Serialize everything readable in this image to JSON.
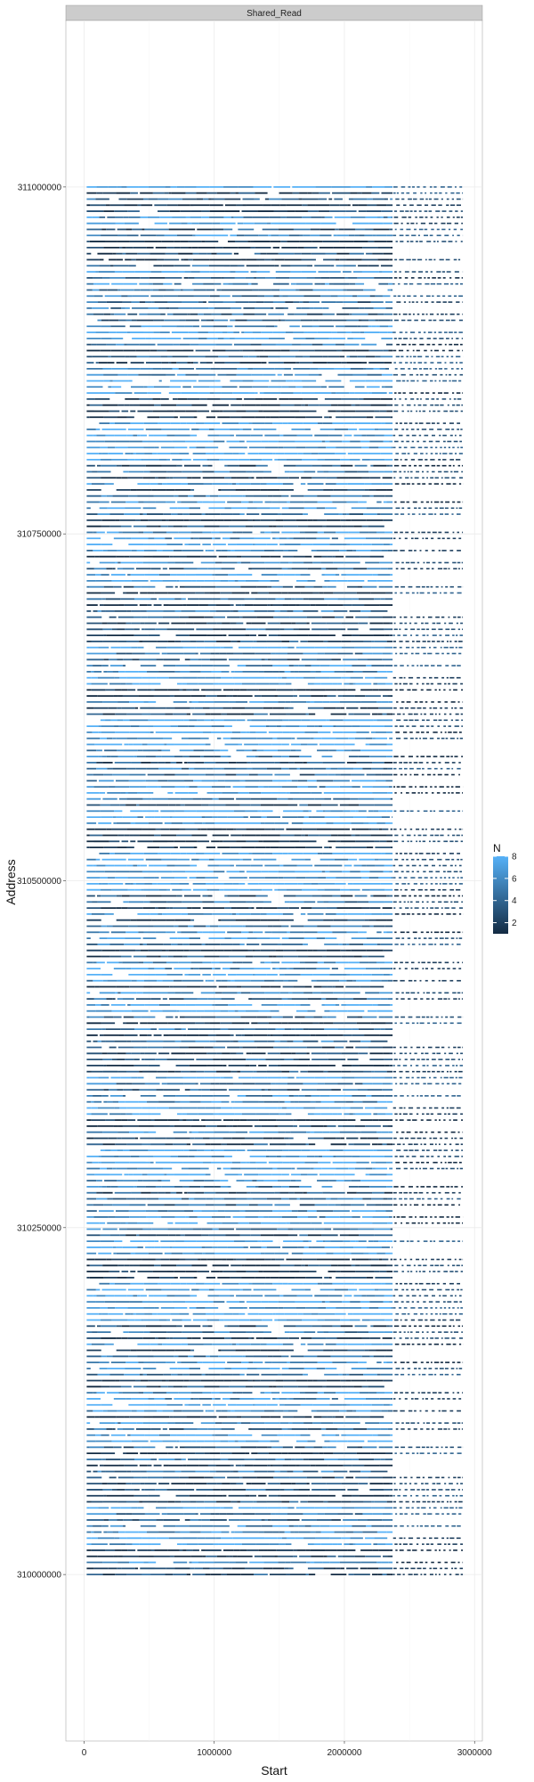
{
  "chart_data": {
    "type": "scatter",
    "panel_strip": "Shared_Read",
    "xlabel": "Start",
    "ylabel": "Address",
    "xlim": [
      -140000,
      3060000
    ],
    "ylim": [
      309880000,
      311120000
    ],
    "x_ticks": [
      0,
      1000000,
      2000000,
      3000000
    ],
    "x_tick_labels": [
      "0",
      "1000000",
      "2000000",
      "3000000"
    ],
    "y_ticks": [
      310000000,
      310250000,
      310500000,
      310750000,
      311000000
    ],
    "y_tick_labels": [
      "310000000",
      "310250000",
      "310500000",
      "310750000",
      "311000000"
    ],
    "color_scale": {
      "title": "N",
      "min": 1,
      "max": 8,
      "low_color": "#132B43",
      "high_color": "#56B1F7",
      "breaks": [
        2,
        4,
        6,
        8
      ],
      "break_labels": [
        "2",
        "4",
        "6",
        "8"
      ]
    },
    "background": "#ffffff",
    "grid": true,
    "legend_position": "right",
    "series_summary": {
      "address_range": [
        310000000,
        311000000
      ],
      "dense_start_range": [
        20000,
        2370000
      ],
      "sparse_start_range": [
        2370000,
        2910000
      ],
      "row_count": 230
    }
  }
}
